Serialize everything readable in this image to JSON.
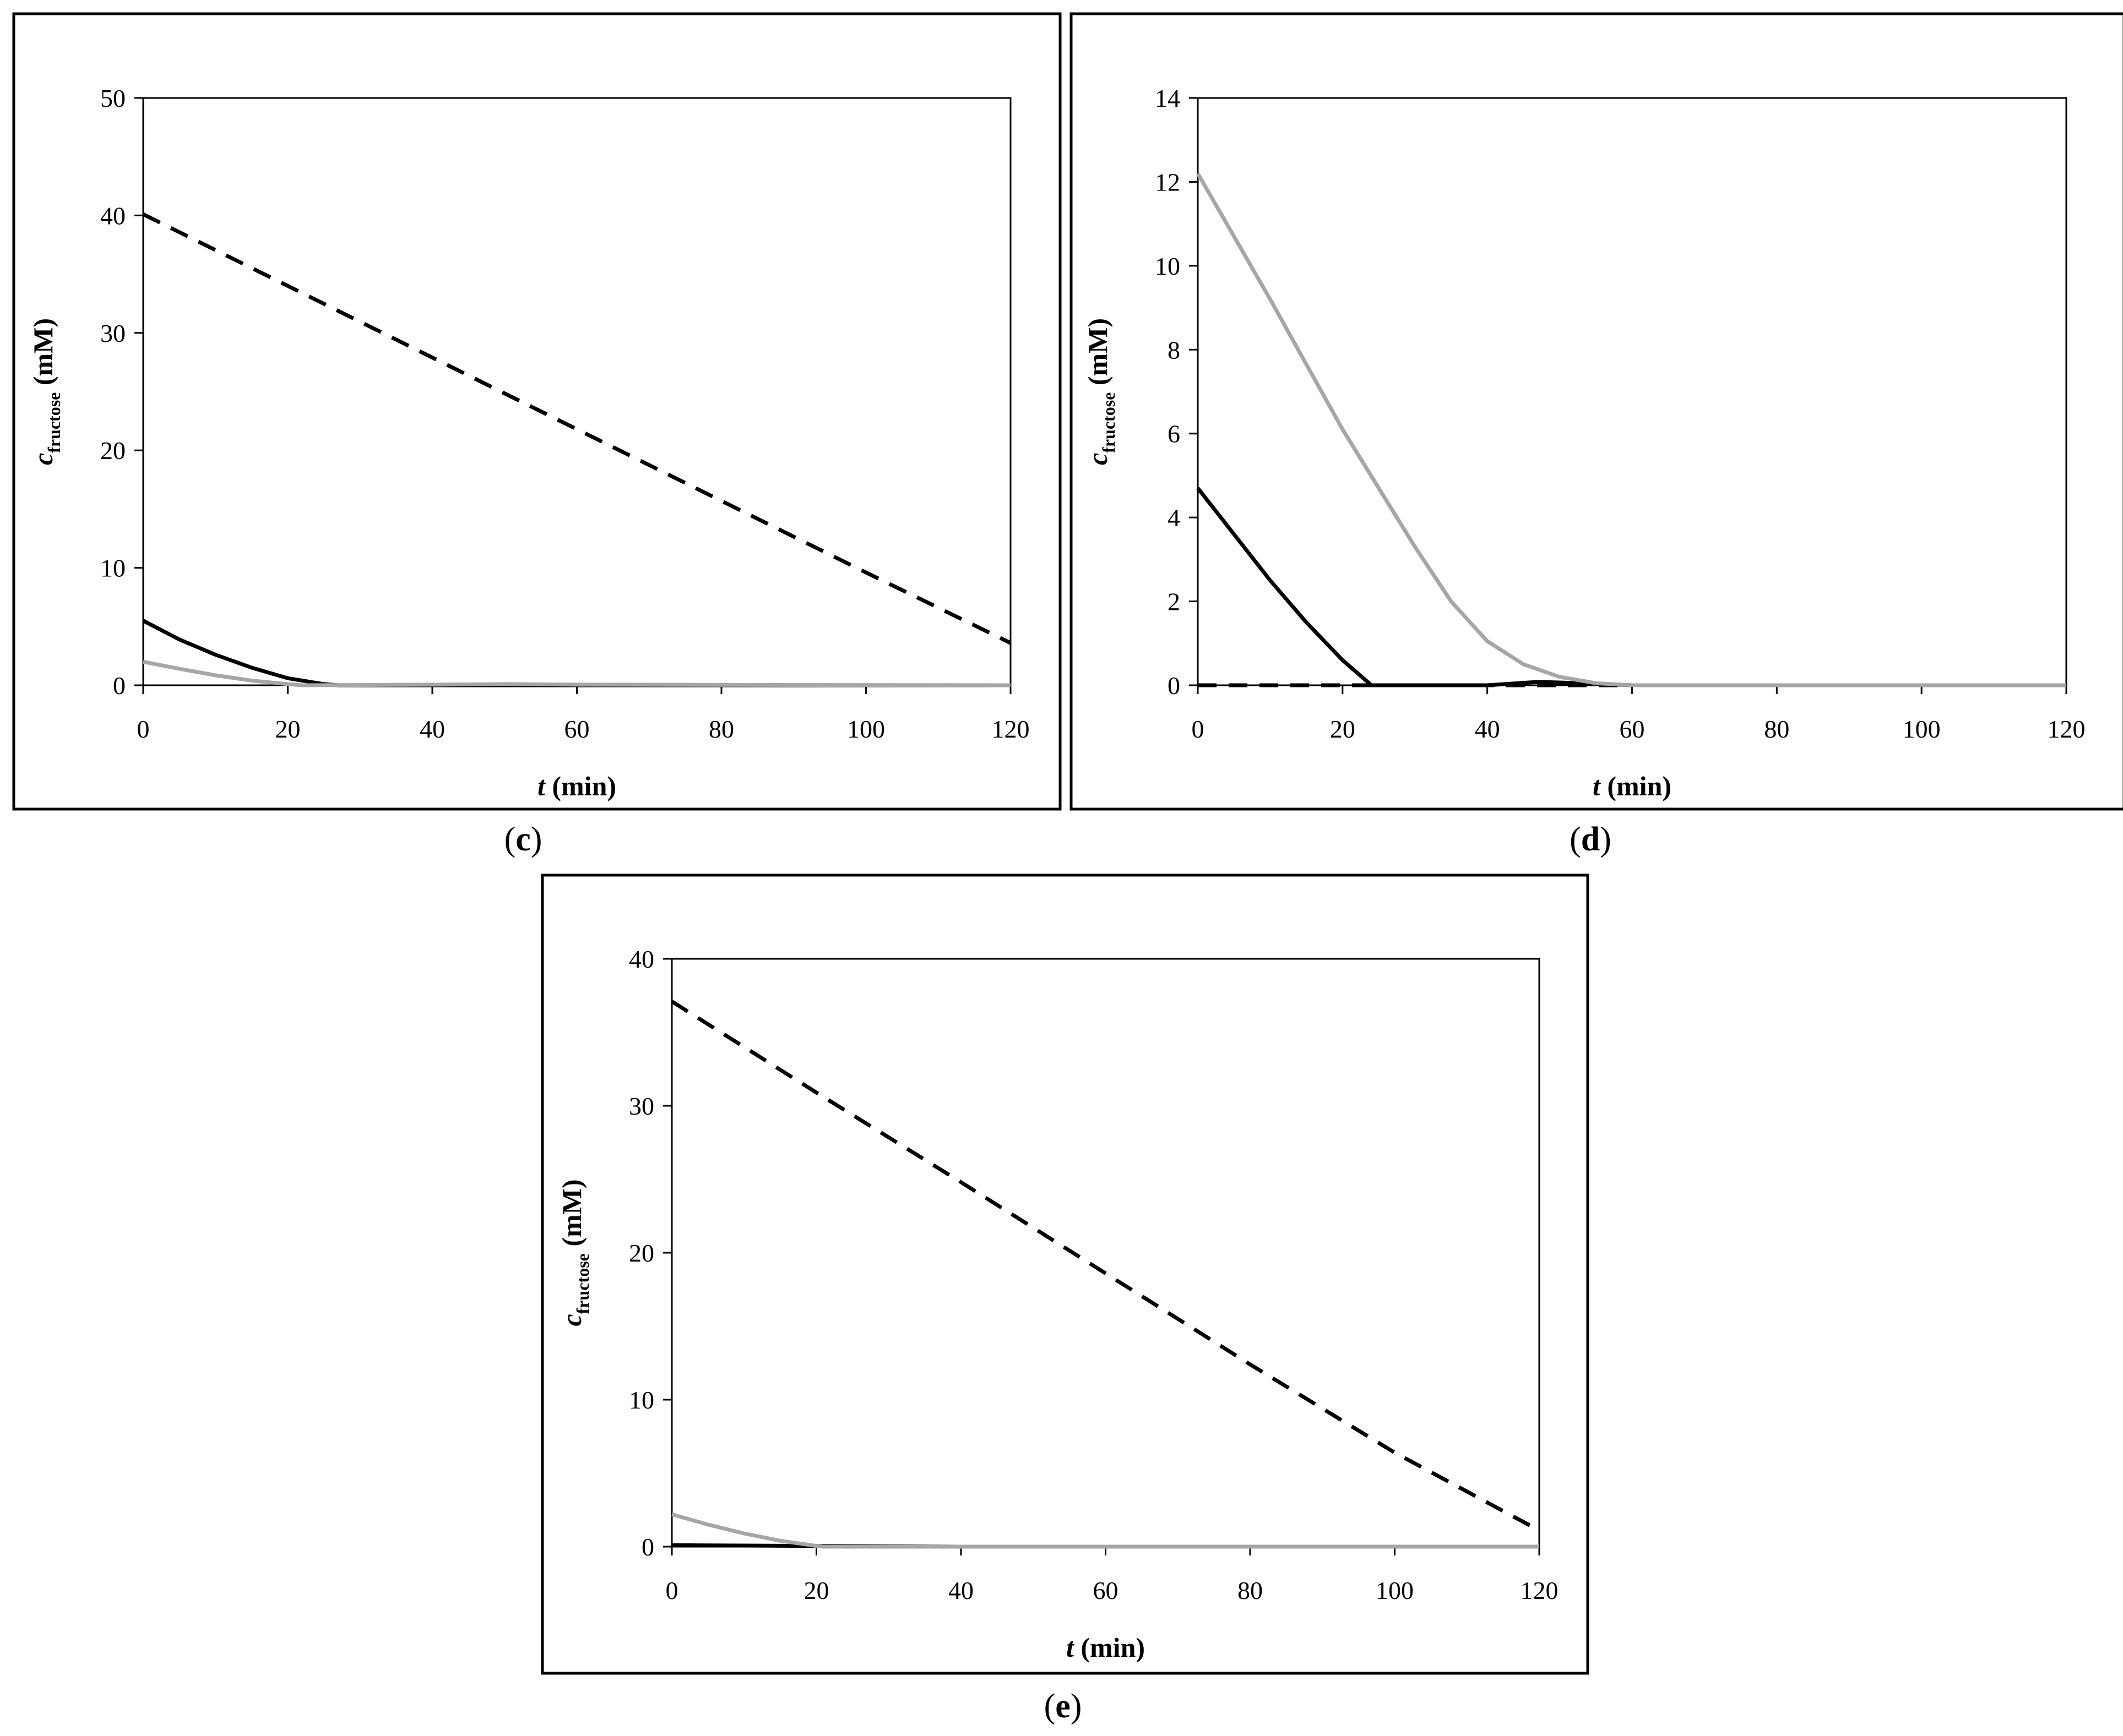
{
  "chart_data": [
    {
      "type": "line",
      "panel_label": "c",
      "xlabel_var": "t",
      "xlabel_unit": "(min)",
      "ylabel_var": "c",
      "ylabel_sub": "fructose",
      "ylabel_unit": "(mM)",
      "xlim": [
        0,
        120
      ],
      "ylim": [
        0,
        50
      ],
      "xticks": [
        0,
        20,
        40,
        60,
        80,
        100,
        120
      ],
      "yticks": [
        0,
        10,
        20,
        30,
        40,
        50
      ],
      "grid": false,
      "series": [
        {
          "style": "dashed",
          "color": "#000000",
          "x": [
            0,
            20,
            40,
            60,
            80,
            100,
            120
          ],
          "y": [
            40.1,
            34.0,
            27.9,
            21.8,
            15.7,
            9.6,
            3.6
          ]
        },
        {
          "style": "solid",
          "color": "#000000",
          "x": [
            0,
            5,
            10,
            15,
            20,
            25,
            27,
            40,
            60,
            120
          ],
          "y": [
            5.5,
            3.9,
            2.6,
            1.5,
            0.6,
            0.1,
            0,
            0,
            0,
            0
          ]
        },
        {
          "style": "solid",
          "color": "#a6a6a6",
          "x": [
            0,
            5,
            10,
            15,
            20,
            22,
            40,
            50,
            60,
            120
          ],
          "y": [
            2.0,
            1.4,
            0.85,
            0.4,
            0.1,
            0,
            0.05,
            0.1,
            0.05,
            0
          ]
        }
      ]
    },
    {
      "type": "line",
      "panel_label": "d",
      "xlabel_var": "t",
      "xlabel_unit": "(min)",
      "ylabel_var": "c",
      "ylabel_sub": "fructose",
      "ylabel_unit": "(mM)",
      "xlim": [
        0,
        120
      ],
      "ylim": [
        0,
        14
      ],
      "xticks": [
        0,
        20,
        40,
        60,
        80,
        100,
        120
      ],
      "yticks": [
        0,
        2,
        4,
        6,
        8,
        10,
        12,
        14
      ],
      "grid": false,
      "series": [
        {
          "style": "dashed",
          "color": "#000000",
          "x": [
            0,
            120
          ],
          "y": [
            0,
            0
          ]
        },
        {
          "style": "solid",
          "color": "#000000",
          "x": [
            0,
            5,
            10,
            15,
            20,
            24,
            40,
            47,
            55,
            60,
            120
          ],
          "y": [
            4.7,
            3.6,
            2.5,
            1.5,
            0.6,
            0,
            0,
            0.08,
            0.04,
            0,
            0
          ]
        },
        {
          "style": "solid",
          "color": "#a6a6a6",
          "x": [
            0,
            10,
            20,
            30,
            35,
            40,
            45,
            50,
            55,
            60,
            120
          ],
          "y": [
            12.2,
            9.2,
            6.1,
            3.3,
            2.0,
            1.05,
            0.5,
            0.2,
            0.05,
            0,
            0
          ]
        }
      ]
    },
    {
      "type": "line",
      "panel_label": "e",
      "xlabel_var": "t",
      "xlabel_unit": "(min)",
      "ylabel_var": "c",
      "ylabel_sub": "fructose",
      "ylabel_unit": "(mM)",
      "xlim": [
        0,
        120
      ],
      "ylim": [
        0,
        40
      ],
      "xticks": [
        0,
        20,
        40,
        60,
        80,
        100,
        120
      ],
      "yticks": [
        0,
        10,
        20,
        30,
        40
      ],
      "grid": false,
      "series": [
        {
          "style": "dashed",
          "color": "#000000",
          "x": [
            0,
            20,
            40,
            60,
            80,
            100,
            120
          ],
          "y": [
            37.1,
            30.9,
            24.8,
            18.6,
            12.4,
            6.4,
            1.1
          ]
        },
        {
          "style": "solid",
          "color": "#000000",
          "x": [
            0,
            20,
            40,
            120
          ],
          "y": [
            0.1,
            0.05,
            0,
            0
          ]
        },
        {
          "style": "solid",
          "color": "#a6a6a6",
          "x": [
            0,
            5,
            10,
            15,
            20,
            21,
            40,
            120
          ],
          "y": [
            2.2,
            1.5,
            0.9,
            0.4,
            0.05,
            0,
            0,
            0
          ]
        }
      ]
    }
  ]
}
